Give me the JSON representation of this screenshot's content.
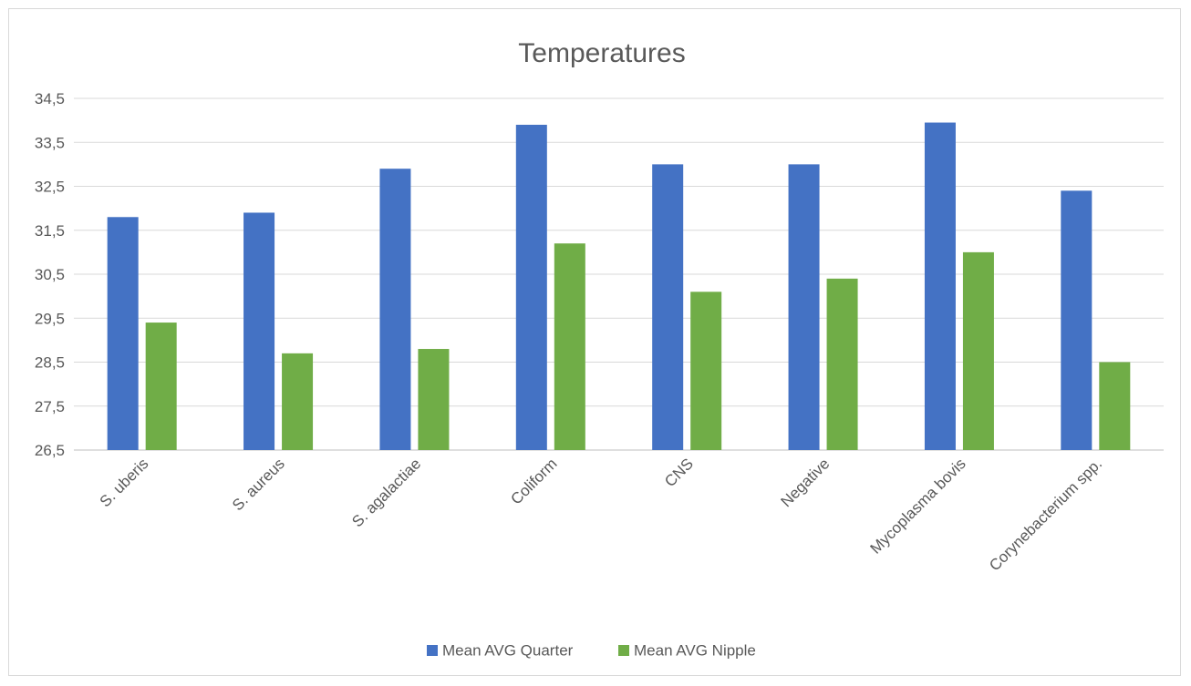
{
  "chart_data": {
    "type": "bar",
    "title": "Temperatures",
    "categories": [
      "S. uberis",
      "S. aureus",
      "S. agalactiae",
      "Coliform",
      "CNS",
      "Negative",
      "Mycoplasma bovis",
      "Corynebacterium spp."
    ],
    "series": [
      {
        "name": "Mean AVG Quarter",
        "color": "#4472c4",
        "values": [
          31.8,
          31.9,
          32.9,
          33.9,
          33.0,
          33.0,
          33.95,
          32.4
        ]
      },
      {
        "name": "Mean AVG Nipple",
        "color": "#70ad47",
        "values": [
          29.4,
          28.7,
          28.8,
          31.2,
          30.1,
          30.4,
          31.0,
          28.5
        ]
      }
    ],
    "yticks": [
      "26,5",
      "27,5",
      "28,5",
      "29,5",
      "30,5",
      "31,5",
      "32,5",
      "33,5",
      "34,5"
    ],
    "ylim": [
      26.5,
      34.5
    ],
    "grid": true,
    "legend_position": "bottom",
    "xlabel": "",
    "ylabel": ""
  }
}
